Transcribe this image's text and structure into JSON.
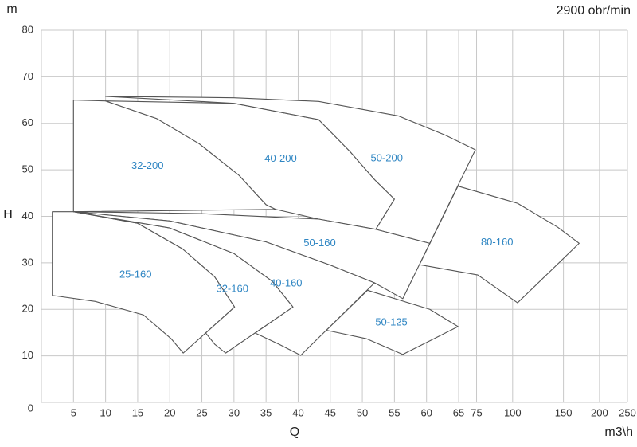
{
  "chart_data": {
    "type": "region",
    "title": "2900 obr/min",
    "x_label": "Q",
    "x_unit": "m3\\h",
    "y_label": "H",
    "y_unit": "m",
    "xscale": "linear-log",
    "xbreak": 65,
    "xlim": [
      0,
      250
    ],
    "xticks": [
      5,
      10,
      15,
      20,
      25,
      30,
      35,
      40,
      45,
      50,
      55,
      60,
      65,
      75,
      100,
      150,
      200,
      250
    ],
    "ylim": [
      0,
      80
    ],
    "yticks": [
      0,
      10,
      20,
      30,
      40,
      50,
      60,
      70,
      80
    ],
    "grid": true,
    "series": [
      {
        "name": "32-200",
        "x": [
          5,
          10,
          18,
          24.6,
          30.8,
          35,
          36.5,
          5
        ],
        "y": [
          65,
          64.8,
          61,
          55.6,
          48.8,
          42.5,
          41.5,
          41
        ]
      },
      {
        "name": "40-200",
        "x": [
          10,
          30,
          43.2,
          48.1,
          51.9,
          55,
          52.1,
          43.2,
          36.5,
          35,
          30.8,
          24.6,
          18
        ],
        "y": [
          64.8,
          64.3,
          60.8,
          53.9,
          47.9,
          43.7,
          37.2,
          39.4,
          41.5,
          42.5,
          48.8,
          55.6,
          61
        ]
      },
      {
        "name": "50-200",
        "x": [
          10,
          30,
          43.2,
          55.6,
          63,
          74.3,
          60.5,
          52.1,
          55,
          51.9,
          48.1,
          43.2,
          30
        ],
        "y": [
          65.8,
          65.5,
          64.7,
          61.6,
          57.4,
          54.3,
          34.2,
          37.2,
          43.7,
          47.9,
          53.9,
          60.8,
          64.3
        ]
      },
      {
        "name": "50-160",
        "x": [
          5,
          24.6,
          43.2,
          52.1,
          60.5,
          56.3,
          51.9,
          45,
          35,
          20
        ],
        "y": [
          41,
          40.6,
          39.4,
          37.2,
          34.2,
          22.3,
          25.7,
          29.5,
          34.5,
          39
        ]
      },
      {
        "name": "80-160",
        "x": [
          64.9,
          104,
          143,
          170,
          104,
          75.7,
          58.9
        ],
        "y": [
          46.5,
          42.8,
          37.7,
          34.2,
          21.4,
          27.4,
          29.6
        ]
      },
      {
        "name": "25-160",
        "x": [
          1.7,
          5,
          15,
          22,
          27,
          30.1,
          22.1,
          20.2,
          15.9,
          8.4,
          1.7
        ],
        "y": [
          41,
          41,
          38.5,
          33,
          27,
          20.5,
          10.6,
          13.7,
          18.8,
          21.7,
          23
        ]
      },
      {
        "name": "32-160",
        "x": [
          5,
          20,
          30,
          36,
          39.2,
          28.7,
          27,
          25.6,
          30.1,
          27,
          22,
          15
        ],
        "y": [
          41,
          37.5,
          32,
          26,
          20.5,
          10.6,
          12.5,
          14.9,
          20.5,
          27,
          33,
          38.5
        ]
      },
      {
        "name": "40-160",
        "x": [
          5,
          20,
          35,
          45,
          51.9,
          40.4,
          37,
          33.3,
          39.2,
          36,
          30,
          20
        ],
        "y": [
          41,
          39,
          34.5,
          29.5,
          25.7,
          10.1,
          12.5,
          14.9,
          20.5,
          26,
          32,
          37.5
        ]
      },
      {
        "name": "50-125",
        "x": [
          44.4,
          50.8,
          60.5,
          64.9,
          61.2,
          56.3,
          50.6
        ],
        "y": [
          15.5,
          24.1,
          20,
          16.3,
          13.7,
          10.3,
          13.7
        ]
      }
    ]
  }
}
